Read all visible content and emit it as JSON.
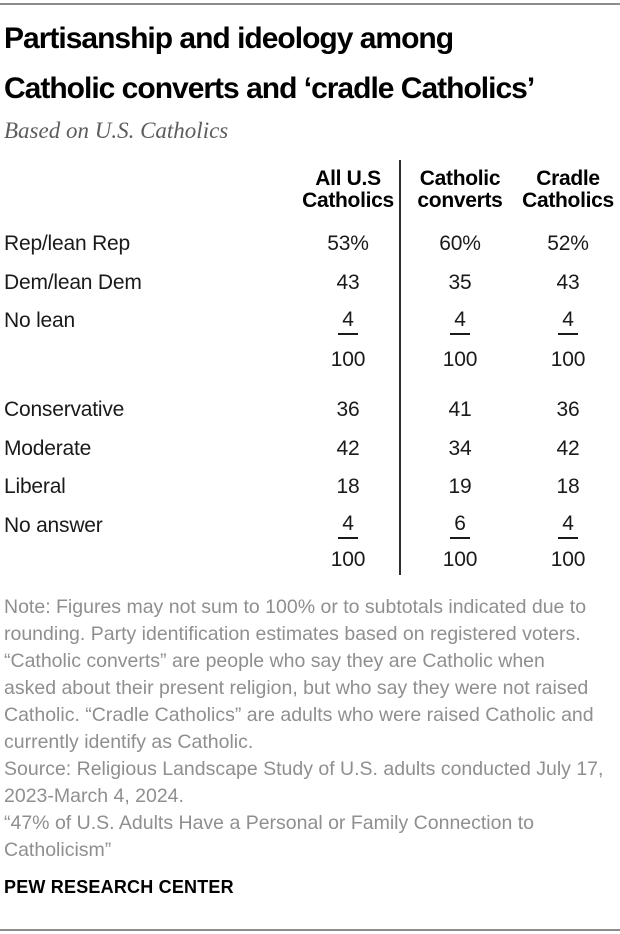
{
  "header": {
    "title_line1": "Partisanship and ideology among",
    "title_line2": "Catholic converts and ‘cradle Catholics’",
    "subtitle": "Based on U.S. Catholics"
  },
  "colors": {
    "title_text": "#000000",
    "body_text": "#1a1a1a",
    "note_text": "#8f8f8f",
    "rule_gray": "#8c8c8c",
    "column_divider": "#2e2e2e"
  },
  "chart_data": {
    "type": "table",
    "title": "Partisanship and ideology among Catholic converts and ‘cradle Catholics’",
    "subtitle": "Based on U.S. Catholics",
    "column_headers": [
      [
        "All U.S",
        "Catholics"
      ],
      [
        "Catholic",
        "converts"
      ],
      [
        "Cradle",
        "Catholics"
      ]
    ],
    "sections": [
      {
        "name": "partisanship",
        "rows": [
          {
            "label": "Rep/lean Rep",
            "values": [
              "53%",
              "60%",
              "52%"
            ],
            "underlined": false,
            "total": false
          },
          {
            "label": "Dem/lean Dem",
            "values": [
              "43",
              "35",
              "43"
            ],
            "underlined": false,
            "total": false
          },
          {
            "label": "No lean",
            "values": [
              "4",
              "4",
              "4"
            ],
            "underlined": true,
            "total": false
          },
          {
            "label": "",
            "values": [
              "100",
              "100",
              "100"
            ],
            "underlined": false,
            "total": true
          }
        ]
      },
      {
        "name": "ideology",
        "rows": [
          {
            "label": "Conservative",
            "values": [
              "36",
              "41",
              "36"
            ],
            "underlined": false,
            "total": false
          },
          {
            "label": "Moderate",
            "values": [
              "42",
              "34",
              "42"
            ],
            "underlined": false,
            "total": false
          },
          {
            "label": "Liberal",
            "values": [
              "18",
              "19",
              "18"
            ],
            "underlined": false,
            "total": false
          },
          {
            "label": "No answer",
            "values": [
              "4",
              "6",
              "4"
            ],
            "underlined": true,
            "total": false
          },
          {
            "label": "",
            "values": [
              "100",
              "100",
              "100"
            ],
            "underlined": false,
            "total": true
          }
        ]
      }
    ]
  },
  "notes": {
    "note_lines": [
      "Note: Figures may not sum to 100% or to subtotals indicated due to",
      "rounding. Party identification estimates based on registered voters.",
      "“Catholic converts” are people who say they are Catholic when",
      "asked about their present religion, but who say they were not raised",
      "Catholic. “Cradle Catholics” are adults who were raised Catholic and",
      "currently identify as Catholic."
    ],
    "source_lines": [
      "Source: Religious Landscape Study of U.S. adults conducted July 17,",
      "2023-March 4, 2024."
    ],
    "report_lines": [
      "“47% of U.S. Adults Have a Personal or Family Connection to",
      "Catholicism”"
    ]
  },
  "footer": {
    "brand": "PEW RESEARCH CENTER"
  }
}
